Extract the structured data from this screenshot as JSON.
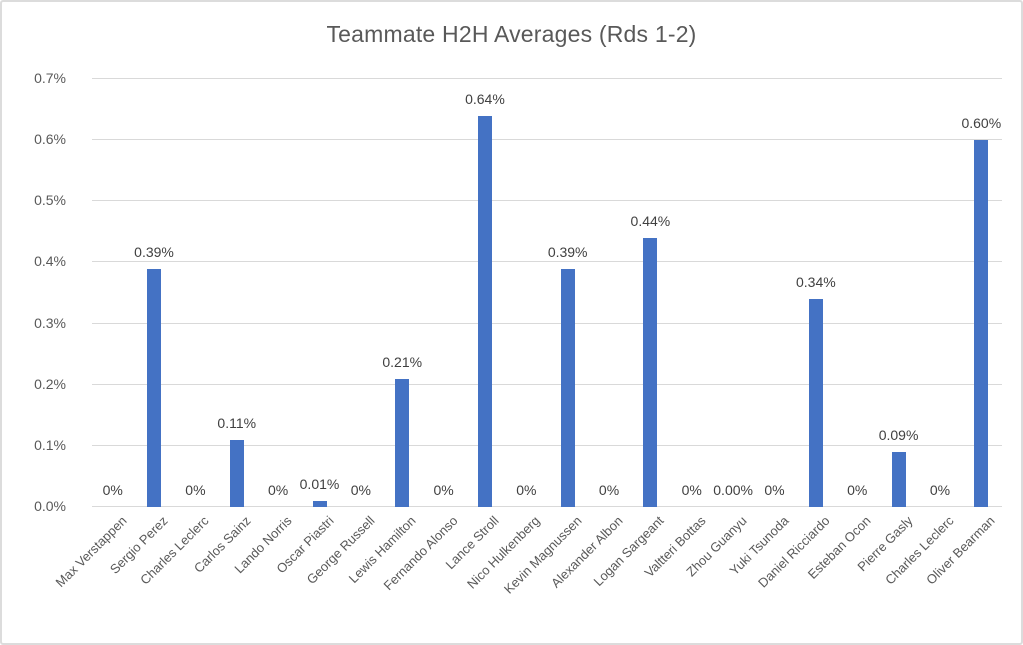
{
  "chart_data": {
    "type": "bar",
    "title": "Teammate H2H Averages (Rds 1-2)",
    "xlabel": "",
    "ylabel": "",
    "ylim_percent": [
      0,
      0.7
    ],
    "y_ticks": [
      "0.0%",
      "0.1%",
      "0.2%",
      "0.3%",
      "0.4%",
      "0.5%",
      "0.6%",
      "0.7%"
    ],
    "grid": "horizontal",
    "legend_position": "none",
    "bar_color": "#4472C4",
    "gridline_color": "#D9D9D9",
    "title_color": "#595959",
    "axis_label_color": "#595959",
    "data_label_color": "#404040",
    "categories": [
      "Max Verstappen",
      "Sergio Perez",
      "Charles Leclerc",
      "Carlos Sainz",
      "Lando Norris",
      "Oscar Piastri",
      "George Russell",
      "Lewis Hamilton",
      "Fernando Alonso",
      "Lance Stroll",
      "Nico Hulkenberg",
      "Kevin Magnussen",
      "Alexander Albon",
      "Logan Sargeant",
      "Valtteri Bottas",
      "Zhou Guanyu",
      "Yuki Tsunoda",
      "Daniel Ricciardo",
      "Esteban Ocon",
      "Pierre Gasly",
      "Charles Leclerc",
      "Oliver Bearman"
    ],
    "values_percent": [
      0,
      0.39,
      0,
      0.11,
      0,
      0.01,
      0,
      0.21,
      0,
      0.64,
      0,
      0.39,
      0,
      0.44,
      0,
      0,
      0,
      0.34,
      0,
      0.09,
      0,
      0.6
    ],
    "data_labels": [
      "0%",
      "0.39%",
      "0%",
      "0.11%",
      "0%",
      "0.01%",
      "0%",
      "0.21%",
      "0%",
      "0.64%",
      "0%",
      "0.39%",
      "0%",
      "0.44%",
      "0%",
      "0.00%",
      "0%",
      "0.34%",
      "0%",
      "0.09%",
      "0%",
      "0.60%"
    ]
  }
}
